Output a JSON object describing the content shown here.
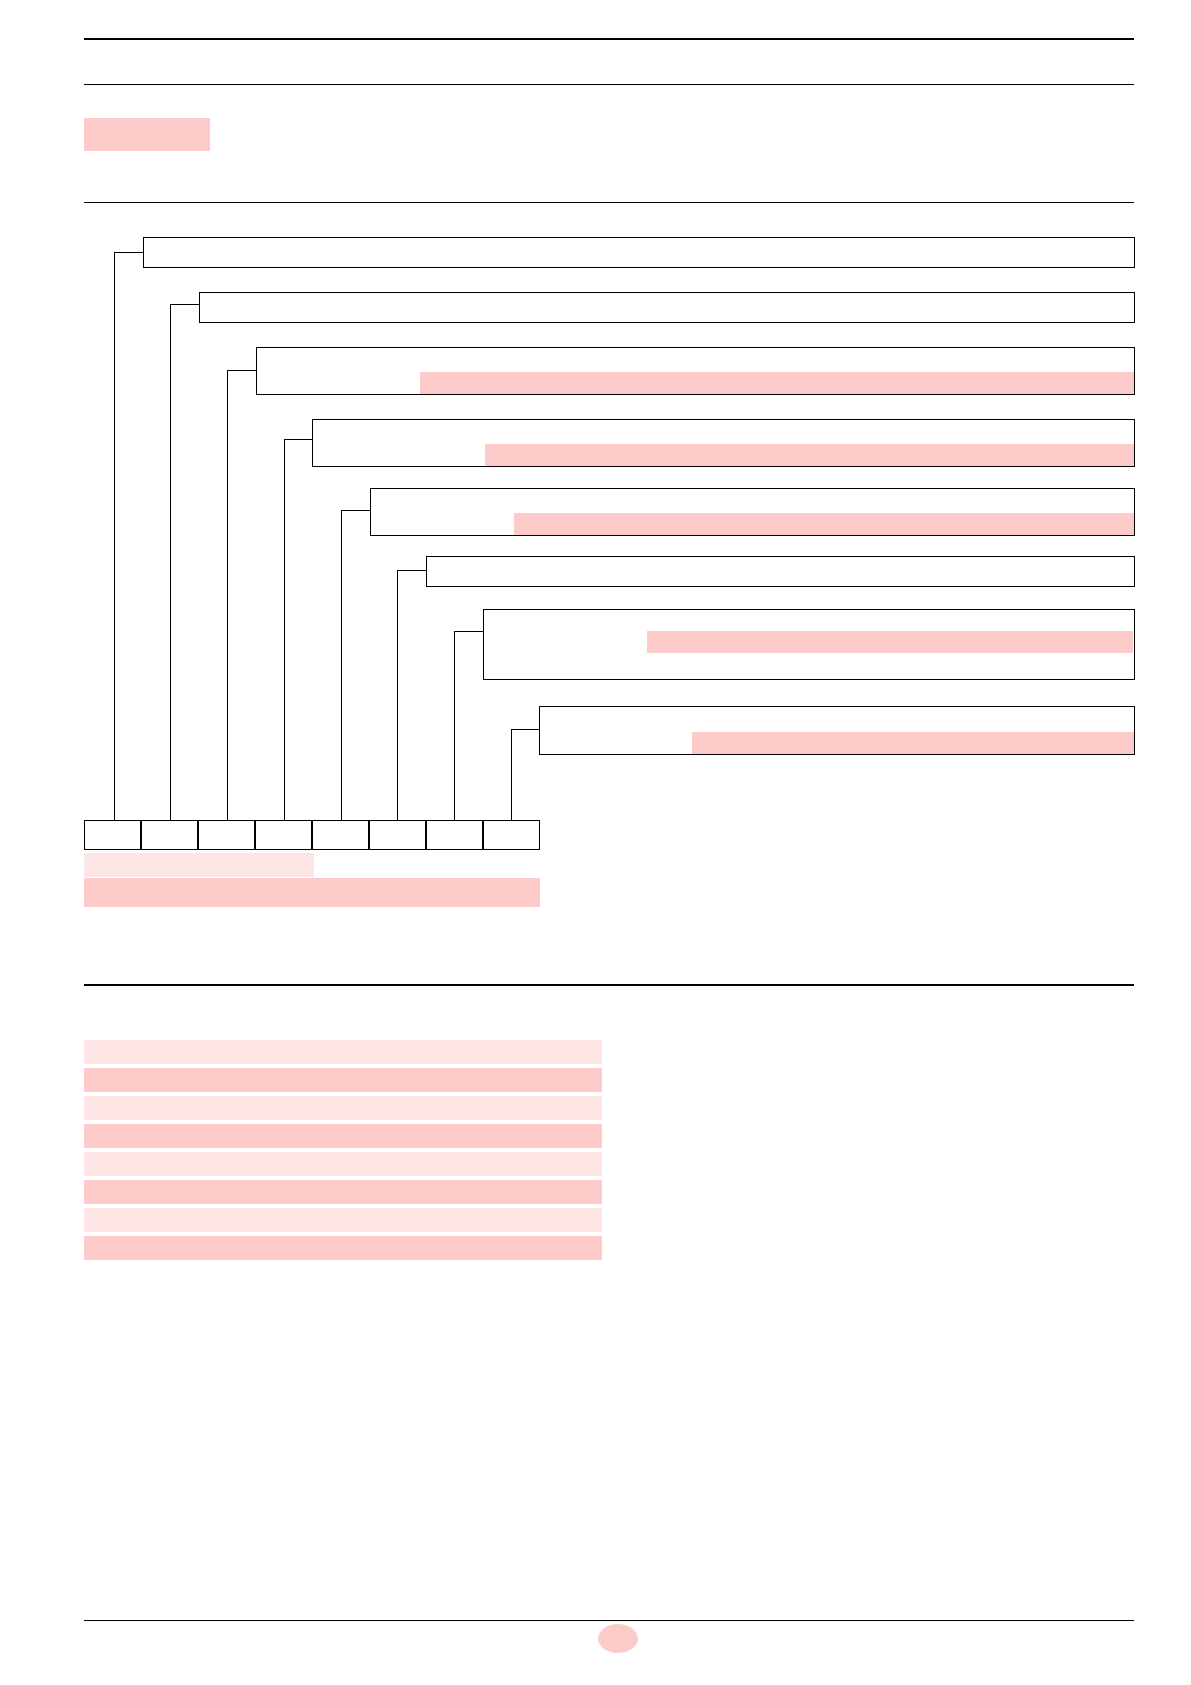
{
  "header": {
    "title": "",
    "section_label": "",
    "chapter_label": ""
  },
  "fields": [
    {
      "label": "",
      "value": ""
    },
    {
      "label": "",
      "value": ""
    },
    {
      "label": "",
      "value": ""
    },
    {
      "label": "",
      "value": ""
    },
    {
      "label": "",
      "value": ""
    },
    {
      "label": "",
      "value": ""
    },
    {
      "label": "",
      "value": ""
    },
    {
      "label": "",
      "value": ""
    }
  ],
  "code_cells": [
    "",
    "",
    "",
    "",
    "",
    "",
    "",
    ""
  ],
  "code_caption": {
    "short": "",
    "long": ""
  },
  "table": {
    "rows": [
      [
        "",
        ""
      ],
      [
        "",
        ""
      ],
      [
        "",
        ""
      ],
      [
        "",
        ""
      ],
      [
        "",
        ""
      ],
      [
        "",
        ""
      ],
      [
        "",
        ""
      ],
      [
        "",
        ""
      ]
    ]
  },
  "footer": {
    "page_number": ""
  },
  "colors": {
    "highlight": "#fdcaca",
    "highlight_light": "#fde5e5",
    "rule": "#000000"
  }
}
